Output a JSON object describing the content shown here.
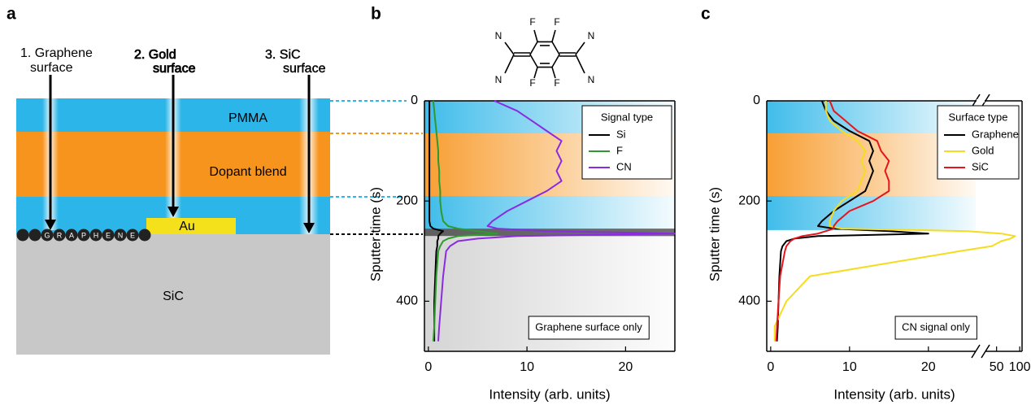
{
  "diagram": {
    "panel_label": "a",
    "probes": [
      {
        "lines": [
          "1. Graphene",
          "surface"
        ]
      },
      {
        "lines": [
          "2. Gold",
          "surface"
        ]
      },
      {
        "lines": [
          "3. SiC",
          "surface"
        ]
      }
    ],
    "layers": {
      "pmma": "PMMA",
      "dopant": "Dopant blend",
      "au": "Au",
      "sic": "SiC"
    },
    "graphene_letters": [
      "G",
      "R",
      "A",
      "P",
      "H",
      "E",
      "N",
      "E"
    ]
  },
  "molecule": {
    "labels": [
      "N",
      "N",
      "F",
      "F",
      "F",
      "F",
      "N",
      "N"
    ]
  },
  "chart_data": [
    {
      "type": "line",
      "panel_label": "b",
      "y_label": "Sputter time (s)",
      "x_label": "Intensity (arb. units)",
      "y": [
        0,
        20,
        40,
        60,
        80,
        100,
        120,
        140,
        160,
        180,
        200,
        220,
        240,
        250,
        255,
        260,
        265,
        270,
        275,
        280,
        290,
        300,
        350,
        400,
        450,
        480
      ],
      "ylim": [
        0,
        500
      ],
      "y_inverted": true,
      "yticks": [
        0,
        200,
        400
      ],
      "xlim": [
        -0.4,
        25
      ],
      "xticks": [
        0,
        10,
        20
      ],
      "legend_title": "Signal type",
      "legend": "upper right",
      "annotation": "Graphene surface only",
      "regions": [
        {
          "from": 0,
          "to": 65,
          "color": "#2bb5e8"
        },
        {
          "from": 65,
          "to": 190,
          "color": "#f7941d"
        },
        {
          "from": 190,
          "to": 255,
          "color": "#2bb5e8"
        },
        {
          "from": 255,
          "to": 270,
          "color": "#4d4d4d"
        },
        {
          "from": 270,
          "to": 500,
          "color": "#d0d0d0"
        }
      ],
      "series": [
        {
          "name": "Si",
          "color": "#000000",
          "values": [
            0.1,
            0.1,
            0.1,
            0.1,
            0.1,
            0.1,
            0.1,
            0.1,
            0.1,
            0.1,
            0.1,
            0.1,
            0.1,
            0.2,
            0.5,
            1.5,
            1.2,
            1.0,
            1.0,
            0.9,
            0.9,
            0.8,
            0.7,
            0.6,
            0.6,
            0.6
          ]
        },
        {
          "name": "F",
          "color": "#2e9a2e",
          "values": [
            0.5,
            0.6,
            0.7,
            0.8,
            0.9,
            1.0,
            1.0,
            1.1,
            1.1,
            1.2,
            1.2,
            1.3,
            1.5,
            2,
            3,
            5,
            7,
            3,
            2,
            1.5,
            1.2,
            1.0,
            0.8,
            0.7,
            0.6,
            0.5
          ]
        },
        {
          "name": "CN",
          "color": "#8a2be2",
          "values": [
            6.7,
            9,
            10.5,
            12,
            13.5,
            13,
            13.5,
            13,
            13.5,
            12,
            10,
            8,
            6.5,
            6,
            7,
            12,
            25,
            9,
            5,
            3,
            2.2,
            1.8,
            1.5,
            1.3,
            1.1,
            1.0
          ]
        }
      ]
    },
    {
      "type": "line",
      "panel_label": "c",
      "y_label": "Sputter time (s)",
      "x_label": "Intensity (arb. units)",
      "y": [
        0,
        20,
        40,
        60,
        80,
        100,
        120,
        140,
        160,
        180,
        200,
        220,
        240,
        250,
        255,
        260,
        265,
        270,
        275,
        280,
        290,
        300,
        350,
        400,
        450,
        480
      ],
      "ylim": [
        0,
        500
      ],
      "y_inverted": true,
      "yticks": [
        0,
        200,
        400
      ],
      "xlim": [
        -0.5,
        26
      ],
      "xticks": [
        0,
        10,
        20
      ],
      "x2lim": [
        26,
        105
      ],
      "x2ticks": [
        50,
        100
      ],
      "axis_break": true,
      "legend_title": "Surface type",
      "legend": "upper right",
      "annotation": "CN signal only",
      "regions": [
        {
          "from": 0,
          "to": 65,
          "color": "#2bb5e8"
        },
        {
          "from": 65,
          "to": 190,
          "color": "#f7941d"
        },
        {
          "from": 190,
          "to": 258,
          "color": "#2bb5e8"
        }
      ],
      "series": [
        {
          "name": "Graphene",
          "color": "#000000",
          "values": [
            6.5,
            7,
            8,
            10,
            12.5,
            13,
            12.5,
            13,
            12.5,
            12,
            10,
            8,
            6.5,
            6,
            8,
            15,
            20,
            6,
            3,
            2,
            1.5,
            1.3,
            1.1,
            1,
            0.9,
            0.8
          ]
        },
        {
          "name": "Gold",
          "color": "#f5dc1e",
          "values": [
            7,
            7,
            7.5,
            9,
            11,
            12,
            11.5,
            12,
            11.5,
            11,
            9,
            8,
            7.5,
            7.5,
            9,
            25,
            60,
            90,
            80,
            60,
            40,
            24,
            5,
            2,
            0.5,
            0.5
          ]
        },
        {
          "name": "SiC",
          "color": "#e8141c",
          "values": [
            7.5,
            8,
            9.5,
            11,
            13.5,
            14,
            15,
            14.5,
            15,
            15,
            13,
            10,
            8.5,
            8,
            8,
            7,
            6,
            4,
            3,
            2.5,
            2,
            1.8,
            1.2,
            1,
            0.8,
            0.7
          ]
        }
      ]
    }
  ]
}
